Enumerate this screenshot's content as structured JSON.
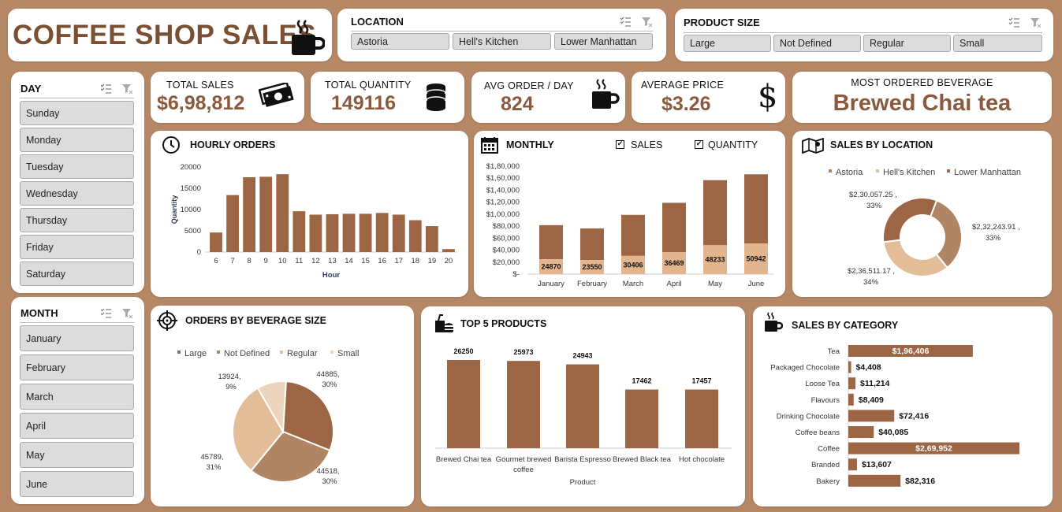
{
  "header": {
    "title": "COFFEE SHOP SALES"
  },
  "location_slicer": {
    "label": "LOCATION",
    "options": [
      "Astoria",
      "Hell's Kitchen",
      "Lower Manhattan"
    ]
  },
  "size_slicer": {
    "label": "PRODUCT SIZE",
    "options": [
      "Large",
      "Not Defined",
      "Regular",
      "Small"
    ]
  },
  "day_slicer": {
    "label": "DAY",
    "options": [
      "Sunday",
      "Monday",
      "Tuesday",
      "Wednesday",
      "Thursday",
      "Friday",
      "Saturday"
    ]
  },
  "month_slicer": {
    "label": "MONTH",
    "options": [
      "January",
      "February",
      "March",
      "April",
      "May",
      "June"
    ]
  },
  "kpis": {
    "total_sales": {
      "label": "TOTAL SALES",
      "value": "$6,98,812"
    },
    "total_quantity": {
      "label": "TOTAL QUANTITY",
      "value": "149116"
    },
    "avg_order": {
      "label": "AVG ORDER / DAY",
      "value": "824"
    },
    "avg_price": {
      "label": "AVERAGE PRICE",
      "value": "$3.26"
    },
    "most_ordered": {
      "label": "MOST ORDERED BEVERAGE",
      "value": "Brewed Chai tea"
    }
  },
  "panels": {
    "hourly": "HOURLY ORDERS",
    "monthly": "MONTHLY",
    "monthly_sales_check": "SALES",
    "monthly_qty_check": "QUANTITY",
    "location": "SALES BY LOCATION",
    "size": "ORDERS BY BEVERAGE SIZE",
    "top5": "TOP 5 PRODUCTS",
    "category": "SALES BY CATEGORY"
  },
  "colors": {
    "background": "#b58764",
    "bar": "#9c6644",
    "bar_light": "#e3b58f",
    "title": "#7a4f33"
  },
  "chart_data": [
    {
      "id": "hourly",
      "type": "bar",
      "xlabel": "Hour",
      "ylabel": "Quantity",
      "ylim": [
        0,
        20000
      ],
      "yticks": [
        "0",
        "5000",
        "10000",
        "15000",
        "20000"
      ],
      "categories": [
        "6",
        "7",
        "8",
        "9",
        "10",
        "11",
        "12",
        "13",
        "14",
        "15",
        "16",
        "17",
        "18",
        "19",
        "20"
      ],
      "values": [
        4600,
        13400,
        17600,
        17700,
        18300,
        9600,
        8800,
        8900,
        9000,
        9000,
        9200,
        8800,
        7500,
        6100,
        700
      ]
    },
    {
      "id": "monthly",
      "type": "bar",
      "categories": [
        "January",
        "February",
        "March",
        "April",
        "May",
        "June"
      ],
      "yticks": [
        "$-",
        "$20,000",
        "$40,000",
        "$60,000",
        "$80,000",
        "$1,00,000",
        "$1,20,000",
        "$1,40,000",
        "$1,60,000",
        "$1,80,000"
      ],
      "ylim": [
        0,
        180000
      ],
      "series": [
        {
          "name": "SALES",
          "values": [
            81678,
            76145,
            98835,
            118941,
            156728,
            166486
          ]
        },
        {
          "name": "QUANTITY",
          "values": [
            24870,
            23550,
            30406,
            36469,
            48233,
            50942
          ]
        }
      ]
    },
    {
      "id": "location",
      "type": "pie",
      "donut": true,
      "legend": "top",
      "categories": [
        "Astoria",
        "Hell's Kitchen",
        "Lower Manhattan"
      ],
      "values": [
        232243.91,
        236511.17,
        230057.25
      ],
      "labels": [
        "$2,32,243.91 , 33%",
        "$2,36,511.17 , 34%",
        "$2,30,057.25 , 33%"
      ]
    },
    {
      "id": "size",
      "type": "pie",
      "legend": "top",
      "categories": [
        "Large",
        "Not Defined",
        "Regular",
        "Small"
      ],
      "values": [
        44885,
        44518,
        45789,
        13924
      ],
      "labels": [
        "44885, 30%",
        "44518, 30%",
        "45789, 31%",
        "13924, 9%"
      ]
    },
    {
      "id": "top5",
      "type": "bar",
      "xlabel": "Product",
      "categories": [
        "Brewed Chai tea",
        "Gourmet brewed coffee",
        "Barista Espresso",
        "Brewed Black tea",
        "Hot chocolate"
      ],
      "values": [
        26250,
        25973,
        24943,
        17462,
        17457
      ]
    },
    {
      "id": "category",
      "type": "bar",
      "orientation": "horizontal",
      "categories": [
        "Tea",
        "Packaged Chocolate",
        "Loose Tea",
        "Flavours",
        "Drinking Chocolate",
        "Coffee beans",
        "Coffee",
        "Branded",
        "Bakery"
      ],
      "values": [
        196406,
        4408,
        11214,
        8409,
        72416,
        40085,
        269952,
        13607,
        82316
      ],
      "labels": [
        "$1,96,406",
        "$4,408",
        "$11,214",
        "$8,409",
        "$72,416",
        "$40,085",
        "$2,69,952",
        "$13,607",
        "$82,316"
      ]
    }
  ]
}
